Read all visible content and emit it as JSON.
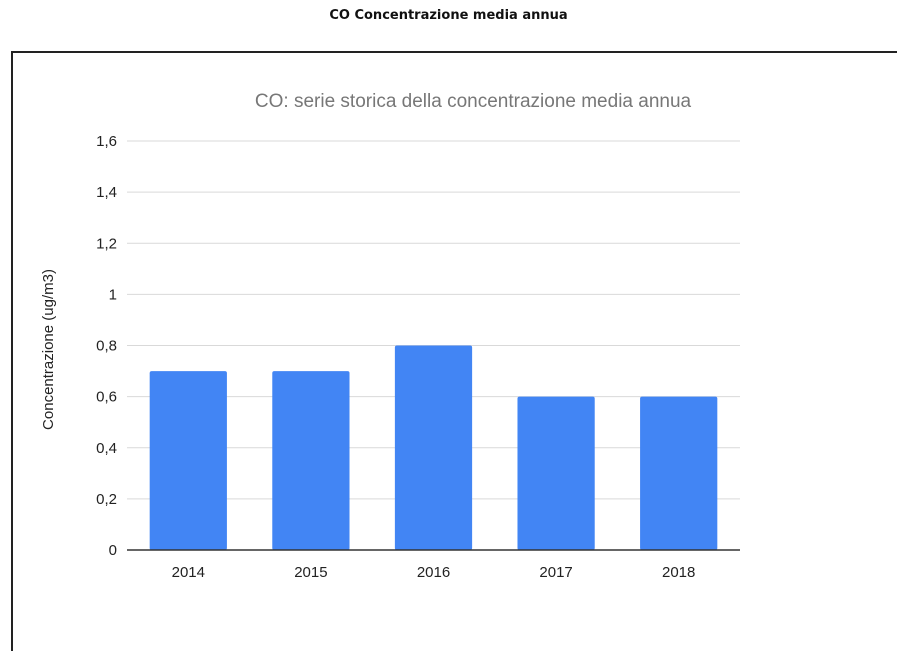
{
  "document": {
    "heading": "CO Concentrazione media annua"
  },
  "colors": {
    "bar": "#4285f4",
    "grid": "#d9d9d9",
    "axis": "#333333"
  },
  "chart_data": {
    "type": "bar",
    "title": "CO: serie storica della concentrazione media annua",
    "xlabel": "",
    "ylabel": "Concentrazione (ug/m3)",
    "categories": [
      "2014",
      "2015",
      "2016",
      "2017",
      "2018"
    ],
    "series": [
      {
        "values": [
          0.7,
          0.7,
          0.8,
          0.6,
          0.6
        ]
      }
    ],
    "ylim": [
      0,
      1.6
    ],
    "yticks": [
      0,
      0.2,
      0.4,
      0.6,
      0.8,
      1,
      1.2,
      1.4,
      1.6
    ],
    "ytick_labels": [
      "0",
      "0,2",
      "0,4",
      "0,6",
      "0,8",
      "1",
      "1,2",
      "1,4",
      "1,6"
    ],
    "grid": true,
    "legend": "none"
  }
}
